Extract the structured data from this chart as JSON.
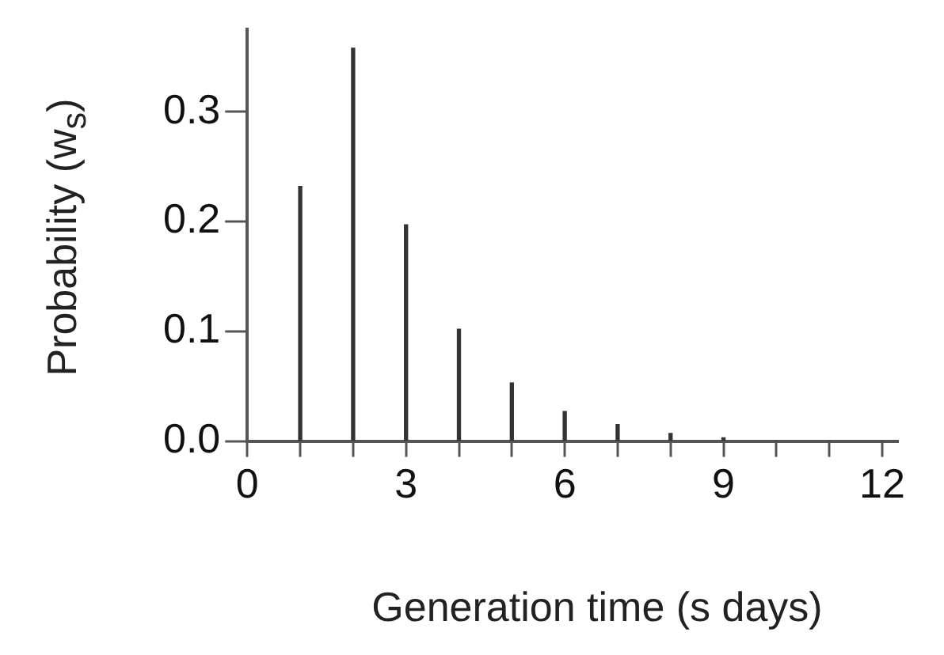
{
  "chart_data": {
    "type": "bar",
    "xlabel": "Generation time (s days)",
    "ylabel": "Probability (w$_{s}$)",
    "x": [
      1,
      2,
      3,
      4,
      5,
      6,
      7,
      8,
      9,
      10,
      11,
      12
    ],
    "values": [
      0.232,
      0.358,
      0.197,
      0.102,
      0.053,
      0.027,
      0.015,
      0.007,
      0.003,
      0,
      0,
      0
    ],
    "color": "#333333",
    "xlim": [
      0,
      12.3
    ],
    "xticks": [
      0,
      {
        "value": 1,
        "label": null
      },
      {
        "value": 2,
        "label": null
      },
      3,
      {
        "value": 4,
        "label": null
      },
      {
        "value": 5,
        "label": null
      },
      6,
      {
        "value": 7,
        "label": null
      },
      {
        "value": 8,
        "label": null
      },
      9,
      {
        "value": 10,
        "label": null
      },
      {
        "value": 11,
        "label": null
      },
      12
    ],
    "ylim": [
      0,
      0.375
    ],
    "yticks": [
      {
        "value": 0,
        "label": "0.0"
      },
      0.1,
      0.2,
      0.3
    ]
  }
}
